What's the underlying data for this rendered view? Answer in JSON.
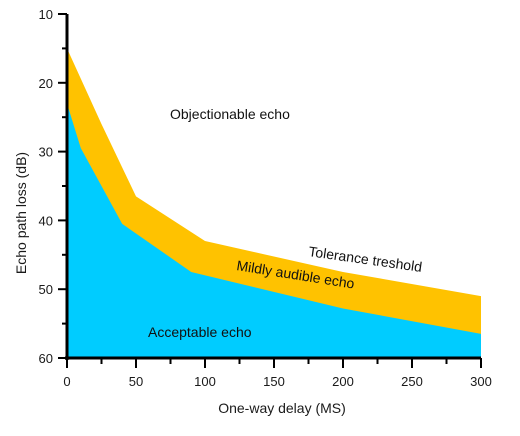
{
  "chart_data": {
    "type": "area",
    "title": "",
    "xlabel": "One-way delay (MS)",
    "ylabel": "Echo path loss (dB)",
    "xlim": [
      0,
      300
    ],
    "ylim": [
      10,
      60
    ],
    "y_inverted": true,
    "x_ticks": [
      0,
      50,
      100,
      150,
      200,
      250,
      300
    ],
    "y_ticks": [
      10,
      20,
      30,
      40,
      50,
      60
    ],
    "grid": false,
    "colors": {
      "acceptable": "#00ccff",
      "mildly_audible": "#ffc200",
      "axis": "#000000"
    },
    "series": [
      {
        "name": "Tolerance treshold",
        "x": [
          0,
          25,
          50,
          100,
          200,
          300
        ],
        "y": [
          15,
          26,
          36.5,
          43,
          47.5,
          51
        ]
      },
      {
        "x": [
          0,
          10,
          40,
          90,
          200,
          300
        ],
        "y": [
          23,
          29.5,
          40.5,
          47.5,
          52.8,
          56.5
        ]
      }
    ],
    "region_labels": {
      "objectionable": "Objectionable echo",
      "mildly_audible": "Mildly audible echo",
      "acceptable": "Acceptable echo",
      "tolerance": "Tolerance treshold"
    }
  }
}
